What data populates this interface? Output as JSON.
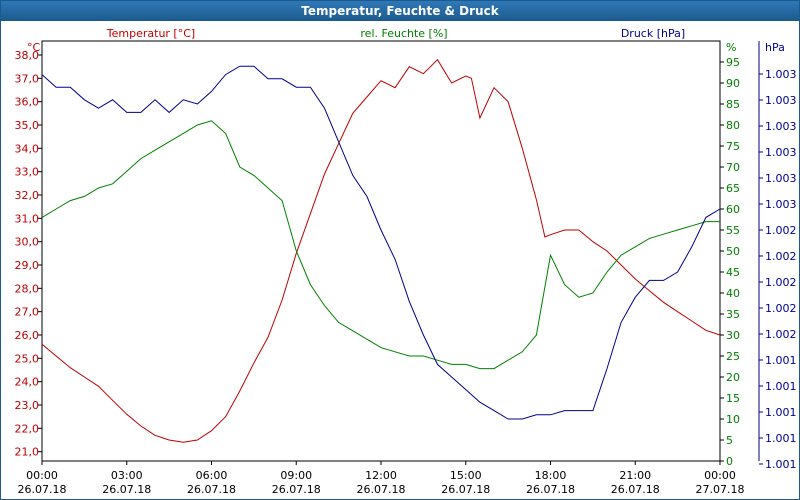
{
  "window": {
    "title": "Temperatur, Feuchte & Druck"
  },
  "chart_data": {
    "type": "line",
    "title": "Temperatur, Feuchte & Druck",
    "x_ticks": [
      "00:00\n26.07.18",
      "03:00\n26.07.18",
      "06:00\n26.07.18",
      "09:00\n26.07.18",
      "12:00\n26.07.18",
      "15:00\n26.07.18",
      "18:00\n26.07.18",
      "21:00\n26.07.18",
      "00:00\n27.07.18"
    ],
    "x_hours_range": [
      0,
      24
    ],
    "grid": true,
    "axes": {
      "temperature": {
        "label": "Temperatur [°C]",
        "unit": "°C",
        "range": [
          20.6,
          38.6
        ],
        "ticks": [
          "38,0",
          "37,0",
          "36,0",
          "35,0",
          "34,0",
          "33,0",
          "32,0",
          "31,0",
          "30,0",
          "29,0",
          "28,0",
          "27,0",
          "26,0",
          "25,0",
          "24,0",
          "23,0",
          "22,0",
          "21,0"
        ],
        "color": "#c00000",
        "side": "left"
      },
      "humidity": {
        "label": "rel. Feuchte [%]",
        "unit": "%",
        "range": [
          0,
          100
        ],
        "ticks": [
          "0",
          "5",
          "10",
          "15",
          "20",
          "25",
          "30",
          "35",
          "40",
          "45",
          "50",
          "55",
          "60",
          "65",
          "70",
          "75",
          "80",
          "85",
          "90",
          "95"
        ],
        "color": "#008000",
        "side": "right"
      },
      "pressure": {
        "label": "Druck [hPa]",
        "unit": "hPa",
        "tick_labels": [
          "1.003",
          "1.003",
          "1.003",
          "1.003",
          "1.003",
          "1.003",
          "1.002",
          "1.002",
          "1.002",
          "1.002",
          "1.002",
          "1.001",
          "1.001",
          "1.001",
          "1.001",
          "1.001"
        ],
        "color": "#00008b",
        "side": "right"
      }
    },
    "series": [
      {
        "name": "Temperatur [°C]",
        "axis": "temperature",
        "color": "#c00000",
        "x": [
          0,
          0.5,
          1,
          1.5,
          2,
          2.5,
          3,
          3.5,
          4,
          4.5,
          5,
          5.5,
          6,
          6.5,
          7,
          7.5,
          8,
          8.5,
          9,
          9.5,
          10,
          10.5,
          11,
          11.5,
          12,
          12.5,
          13,
          13.5,
          14,
          14.5,
          15,
          15.2,
          15.5,
          16,
          16.5,
          17,
          17.5,
          17.8,
          18,
          18.5,
          19,
          19.5,
          20,
          20.5,
          21,
          21.5,
          22,
          22.5,
          23,
          23.5,
          24
        ],
        "y": [
          25.6,
          25.1,
          24.6,
          24.2,
          23.8,
          23.2,
          22.6,
          22.1,
          21.7,
          21.5,
          21.4,
          21.5,
          21.9,
          22.5,
          23.6,
          24.8,
          25.9,
          27.5,
          29.5,
          31.2,
          32.9,
          34.2,
          35.5,
          36.2,
          36.9,
          36.6,
          37.5,
          37.2,
          37.8,
          36.8,
          37.1,
          37.0,
          35.3,
          36.6,
          36.0,
          34.0,
          31.8,
          30.2,
          30.3,
          30.5,
          30.5,
          30.0,
          29.6,
          29.0,
          28.4,
          27.9,
          27.4,
          27.0,
          26.6,
          26.2,
          26.0
        ]
      },
      {
        "name": "rel. Feuchte [%]",
        "axis": "humidity",
        "color": "#008000",
        "x": [
          0,
          0.5,
          1,
          1.5,
          2,
          2.5,
          3,
          3.5,
          4,
          4.5,
          5,
          5.5,
          6,
          6.5,
          7,
          7.5,
          8,
          8.5,
          9,
          9.5,
          10,
          10.5,
          11,
          11.5,
          12,
          12.5,
          13,
          13.5,
          14,
          14.5,
          15,
          15.5,
          16,
          16.5,
          17,
          17.5,
          18,
          18.5,
          19,
          19.5,
          20,
          20.5,
          21,
          21.5,
          22,
          22.5,
          23,
          23.5,
          24
        ],
        "y": [
          58,
          60,
          62,
          63,
          65,
          66,
          69,
          72,
          74,
          76,
          78,
          80,
          81,
          78,
          70,
          68,
          65,
          62,
          50,
          42,
          37,
          33,
          31,
          29,
          27,
          26,
          25,
          25,
          24,
          23,
          23,
          22,
          22,
          24,
          26,
          30,
          49,
          42,
          39,
          40,
          45,
          49,
          51,
          53,
          54,
          55,
          56,
          57,
          57
        ]
      },
      {
        "name": "Druck [hPa]",
        "axis": "pressure",
        "color": "#00008b",
        "x": [
          0,
          0.5,
          1,
          1.5,
          2,
          2.5,
          3,
          3.5,
          4,
          4.5,
          5,
          5.5,
          6,
          6.5,
          7,
          7.5,
          8,
          8.5,
          9,
          9.5,
          10,
          10.5,
          11,
          11.5,
          12,
          12.5,
          13,
          13.5,
          14,
          14.5,
          15,
          15.5,
          16,
          16.5,
          17,
          17.5,
          18,
          18.5,
          19,
          19.5,
          20,
          20.5,
          21,
          21.5,
          22,
          22.5,
          23,
          23.5,
          24
        ],
        "y": [
          92,
          89,
          89,
          86,
          84,
          86,
          83,
          83,
          86,
          83,
          86,
          85,
          88,
          92,
          94,
          94,
          91,
          91,
          89,
          89,
          84,
          76,
          68,
          63,
          55,
          48,
          38,
          30,
          23,
          20,
          17,
          14,
          12,
          10,
          10,
          11,
          11,
          12,
          12,
          12,
          22,
          33,
          39,
          43,
          43,
          45,
          51,
          58,
          60
        ]
      }
    ]
  }
}
